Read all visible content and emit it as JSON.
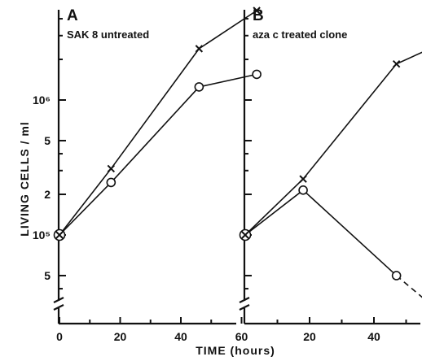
{
  "figure": {
    "xlabel": "TIME (hours)",
    "ylabel": "LIVING CELLS / ml"
  },
  "chart_data": [
    {
      "type": "line",
      "panel": "A",
      "subtitle": "SAK 8 untreated",
      "x_ticks": [
        "0",
        "20",
        "40",
        "60"
      ],
      "xlim": [
        0,
        72
      ],
      "y_scale": "log",
      "y_ticks": [
        "5",
        "10⁵",
        "2",
        "5",
        "10⁶"
      ],
      "ylim": [
        25000,
        5500000
      ],
      "series": [
        {
          "marker": "x",
          "x": [
            0,
            17,
            46,
            65
          ],
          "y": [
            100000,
            310000,
            2400000,
            4600000
          ]
        },
        {
          "marker": "o",
          "x": [
            0,
            17,
            46,
            65
          ],
          "y": [
            100000,
            245000,
            1250000,
            1550000
          ]
        }
      ]
    },
    {
      "type": "line",
      "panel": "B",
      "subtitle": "aza c treated clone",
      "x_ticks": [
        "20",
        "40",
        "60"
      ],
      "xlim": [
        0,
        66
      ],
      "y_scale": "log",
      "y_ticks": [
        "5",
        "10⁵",
        "2",
        "5",
        "10⁶"
      ],
      "ylim": [
        25000,
        5500000
      ],
      "series": [
        {
          "marker": "x",
          "x": [
            0,
            18,
            47,
            65
          ],
          "y": [
            100000,
            260000,
            1850000,
            2900000
          ]
        },
        {
          "marker": "o",
          "x": [
            0,
            18,
            47
          ],
          "y": [
            100000,
            215000,
            50000
          ],
          "extrapolated_to": {
            "x": 62,
            "y": 25000
          }
        }
      ]
    }
  ]
}
